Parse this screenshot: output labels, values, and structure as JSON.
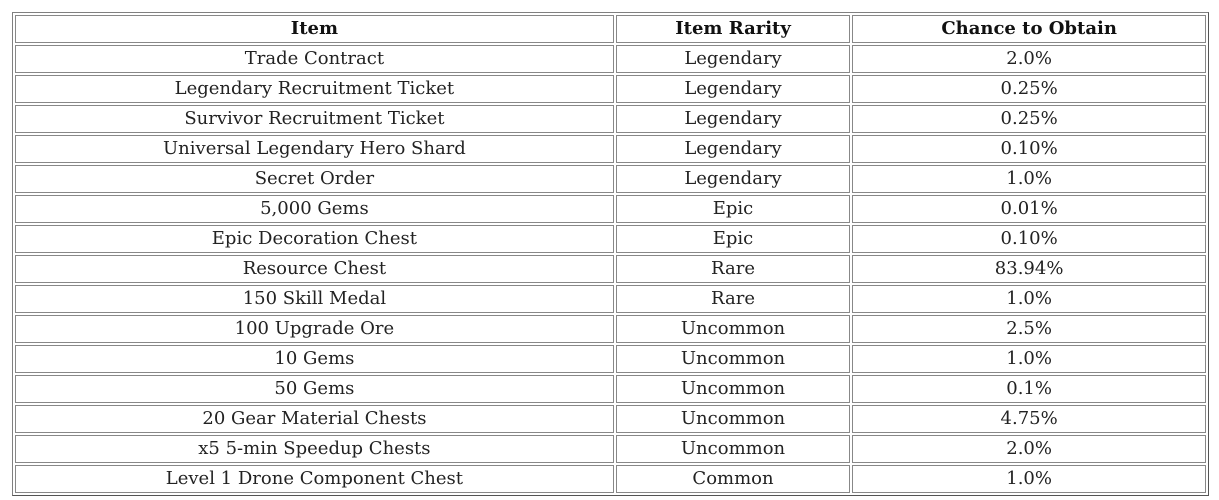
{
  "table": {
    "headers": [
      "Item",
      "Item Rarity",
      "Chance to Obtain"
    ],
    "rows": [
      [
        "Trade Contract",
        "Legendary",
        "2.0%"
      ],
      [
        "Legendary Recruitment Ticket",
        "Legendary",
        "0.25%"
      ],
      [
        "Survivor Recruitment Ticket",
        "Legendary",
        "0.25%"
      ],
      [
        "Universal Legendary Hero Shard",
        "Legendary",
        "0.10%"
      ],
      [
        "Secret Order",
        "Legendary",
        "1.0%"
      ],
      [
        "5,000 Gems",
        "Epic",
        "0.01%"
      ],
      [
        "Epic Decoration Chest",
        "Epic",
        "0.10%"
      ],
      [
        "Resource Chest",
        "Rare",
        "83.94%"
      ],
      [
        "150 Skill Medal",
        "Rare",
        "1.0%"
      ],
      [
        "100 Upgrade Ore",
        "Uncommon",
        "2.5%"
      ],
      [
        "10 Gems",
        "Uncommon",
        "1.0%"
      ],
      [
        "50 Gems",
        "Uncommon",
        "0.1%"
      ],
      [
        "20 Gear Material Chests",
        "Uncommon",
        "4.75%"
      ],
      [
        "x5 5-min Speedup Chests",
        "Uncommon",
        "2.0%"
      ],
      [
        "Level 1 Drone Component Chest",
        "Common",
        "1.0%"
      ]
    ]
  }
}
